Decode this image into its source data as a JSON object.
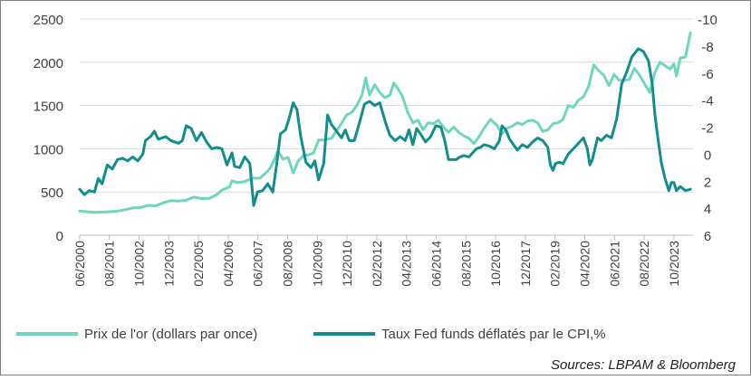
{
  "chart_data": {
    "type": "line",
    "title": "",
    "y_left": {
      "min": 0,
      "max": 2500,
      "ticks": [
        0,
        500,
        1000,
        1500,
        2000,
        2500
      ]
    },
    "y_right": {
      "min": 6,
      "max": -10,
      "inverted": true,
      "ticks": [
        6,
        4,
        2,
        0,
        -2,
        -4,
        -6,
        -8,
        -10
      ]
    },
    "x_ticks": [
      "06/2000",
      "08/2001",
      "10/2002",
      "12/2003",
      "02/2005",
      "04/2006",
      "06/2007",
      "08/2008",
      "10/2009",
      "12/2010",
      "02/2012",
      "04/2013",
      "06/2014",
      "08/2015",
      "10/2016",
      "12/2017",
      "02/2019",
      "04/2020",
      "06/2021",
      "08/2022",
      "10/2023"
    ],
    "grid": "horizontal",
    "legend_position": "bottom",
    "colors": {
      "gold": "#6fd6bd",
      "fed": "#138c8c",
      "grid": "#d9d9d9"
    },
    "series": [
      {
        "name": "Prix de l'or (dollars par once)",
        "axis": "left",
        "points": [
          [
            2000.42,
            280
          ],
          [
            2000.7,
            272
          ],
          [
            2001.0,
            265
          ],
          [
            2001.3,
            268
          ],
          [
            2001.6,
            272
          ],
          [
            2001.9,
            278
          ],
          [
            2002.2,
            295
          ],
          [
            2002.5,
            315
          ],
          [
            2002.8,
            320
          ],
          [
            2003.1,
            345
          ],
          [
            2003.4,
            340
          ],
          [
            2003.7,
            375
          ],
          [
            2004.0,
            400
          ],
          [
            2004.3,
            395
          ],
          [
            2004.6,
            405
          ],
          [
            2004.9,
            440
          ],
          [
            2005.2,
            425
          ],
          [
            2005.5,
            425
          ],
          [
            2005.8,
            470
          ],
          [
            2006.0,
            520
          ],
          [
            2006.3,
            560
          ],
          [
            2006.4,
            630
          ],
          [
            2006.6,
            610
          ],
          [
            2006.9,
            620
          ],
          [
            2007.2,
            660
          ],
          [
            2007.5,
            660
          ],
          [
            2007.8,
            740
          ],
          [
            2007.95,
            800
          ],
          [
            2008.1,
            900
          ],
          [
            2008.2,
            980
          ],
          [
            2008.4,
            880
          ],
          [
            2008.6,
            900
          ],
          [
            2008.8,
            720
          ],
          [
            2009.0,
            860
          ],
          [
            2009.2,
            920
          ],
          [
            2009.4,
            930
          ],
          [
            2009.6,
            950
          ],
          [
            2009.8,
            1100
          ],
          [
            2010.0,
            1100
          ],
          [
            2010.3,
            1120
          ],
          [
            2010.6,
            1250
          ],
          [
            2010.9,
            1390
          ],
          [
            2011.1,
            1420
          ],
          [
            2011.3,
            1500
          ],
          [
            2011.5,
            1620
          ],
          [
            2011.65,
            1820
          ],
          [
            2011.8,
            1620
          ],
          [
            2012.0,
            1740
          ],
          [
            2012.2,
            1650
          ],
          [
            2012.4,
            1590
          ],
          [
            2012.6,
            1620
          ],
          [
            2012.75,
            1760
          ],
          [
            2012.9,
            1700
          ],
          [
            2013.1,
            1600
          ],
          [
            2013.3,
            1420
          ],
          [
            2013.5,
            1300
          ],
          [
            2013.7,
            1330
          ],
          [
            2013.9,
            1220
          ],
          [
            2014.1,
            1300
          ],
          [
            2014.3,
            1290
          ],
          [
            2014.5,
            1330
          ],
          [
            2014.7,
            1250
          ],
          [
            2014.9,
            1190
          ],
          [
            2015.1,
            1250
          ],
          [
            2015.3,
            1190
          ],
          [
            2015.5,
            1150
          ],
          [
            2015.7,
            1120
          ],
          [
            2015.9,
            1060
          ],
          [
            2016.1,
            1140
          ],
          [
            2016.3,
            1240
          ],
          [
            2016.55,
            1340
          ],
          [
            2016.8,
            1270
          ],
          [
            2017.0,
            1170
          ],
          [
            2017.2,
            1240
          ],
          [
            2017.4,
            1260
          ],
          [
            2017.6,
            1300
          ],
          [
            2017.8,
            1280
          ],
          [
            2018.0,
            1320
          ],
          [
            2018.2,
            1330
          ],
          [
            2018.4,
            1300
          ],
          [
            2018.6,
            1200
          ],
          [
            2018.8,
            1220
          ],
          [
            2019.0,
            1290
          ],
          [
            2019.2,
            1300
          ],
          [
            2019.4,
            1340
          ],
          [
            2019.6,
            1500
          ],
          [
            2019.8,
            1480
          ],
          [
            2020.0,
            1560
          ],
          [
            2020.2,
            1600
          ],
          [
            2020.4,
            1720
          ],
          [
            2020.6,
            1970
          ],
          [
            2020.8,
            1900
          ],
          [
            2021.0,
            1850
          ],
          [
            2021.2,
            1730
          ],
          [
            2021.4,
            1860
          ],
          [
            2021.6,
            1790
          ],
          [
            2021.8,
            1790
          ],
          [
            2022.0,
            1800
          ],
          [
            2022.2,
            1930
          ],
          [
            2022.4,
            1850
          ],
          [
            2022.6,
            1750
          ],
          [
            2022.8,
            1650
          ],
          [
            2023.0,
            1880
          ],
          [
            2023.2,
            2000
          ],
          [
            2023.4,
            1960
          ],
          [
            2023.6,
            1920
          ],
          [
            2023.75,
            1980
          ],
          [
            2023.85,
            1840
          ],
          [
            2024.0,
            2050
          ],
          [
            2024.2,
            2060
          ],
          [
            2024.4,
            2340
          ]
        ]
      },
      {
        "name": "Taux Fed funds déflatés par le CPI,%",
        "axis": "right",
        "points": [
          [
            2000.42,
            2.6
          ],
          [
            2000.6,
            3.0
          ],
          [
            2000.8,
            2.7
          ],
          [
            2001.0,
            2.8
          ],
          [
            2001.15,
            1.8
          ],
          [
            2001.3,
            2.2
          ],
          [
            2001.5,
            0.8
          ],
          [
            2001.7,
            1.1
          ],
          [
            2001.9,
            0.4
          ],
          [
            2002.1,
            0.3
          ],
          [
            2002.3,
            0.5
          ],
          [
            2002.5,
            0.2
          ],
          [
            2002.7,
            0.5
          ],
          [
            2002.9,
            0.0
          ],
          [
            2003.0,
            -1.0
          ],
          [
            2003.2,
            -1.3
          ],
          [
            2003.35,
            -1.7
          ],
          [
            2003.5,
            -1.1
          ],
          [
            2003.8,
            -1.3
          ],
          [
            2004.0,
            -1.0
          ],
          [
            2004.3,
            -0.8
          ],
          [
            2004.45,
            -1.0
          ],
          [
            2004.6,
            -2.1
          ],
          [
            2004.8,
            -1.9
          ],
          [
            2005.0,
            -1.0
          ],
          [
            2005.2,
            -1.6
          ],
          [
            2005.4,
            -0.9
          ],
          [
            2005.6,
            -0.4
          ],
          [
            2005.8,
            -0.5
          ],
          [
            2006.0,
            -0.4
          ],
          [
            2006.2,
            0.8
          ],
          [
            2006.4,
            -0.1
          ],
          [
            2006.5,
            0.9
          ],
          [
            2006.7,
            1.0
          ],
          [
            2006.9,
            0.2
          ],
          [
            2007.1,
            0.7
          ],
          [
            2007.25,
            3.8
          ],
          [
            2007.4,
            2.8
          ],
          [
            2007.6,
            2.7
          ],
          [
            2007.8,
            2.2
          ],
          [
            2008.0,
            2.8
          ],
          [
            2008.15,
            0.8
          ],
          [
            2008.3,
            -1.5
          ],
          [
            2008.5,
            -1.8
          ],
          [
            2008.65,
            -2.7
          ],
          [
            2008.8,
            -3.8
          ],
          [
            2008.95,
            -3.3
          ],
          [
            2009.1,
            -1.3
          ],
          [
            2009.3,
            0.6
          ],
          [
            2009.5,
            1.0
          ],
          [
            2009.65,
            0.5
          ],
          [
            2009.8,
            1.9
          ],
          [
            2010.0,
            0.7
          ],
          [
            2010.15,
            -2.9
          ],
          [
            2010.3,
            -2.2
          ],
          [
            2010.5,
            -1.7
          ],
          [
            2010.7,
            -1.2
          ],
          [
            2010.85,
            -1.8
          ],
          [
            2011.0,
            -1.0
          ],
          [
            2011.2,
            -1.0
          ],
          [
            2011.4,
            -2.3
          ],
          [
            2011.6,
            -3.7
          ],
          [
            2011.8,
            -3.9
          ],
          [
            2012.0,
            -3.6
          ],
          [
            2012.2,
            -3.8
          ],
          [
            2012.45,
            -2.2
          ],
          [
            2012.6,
            -1.4
          ],
          [
            2012.8,
            -1.0
          ],
          [
            2013.0,
            -1.3
          ],
          [
            2013.2,
            -1.0
          ],
          [
            2013.35,
            -1.8
          ],
          [
            2013.5,
            -0.7
          ],
          [
            2013.65,
            -1.9
          ],
          [
            2013.8,
            -1.5
          ],
          [
            2014.0,
            -0.9
          ],
          [
            2014.2,
            -1.3
          ],
          [
            2014.4,
            -2.1
          ],
          [
            2014.6,
            -2.0
          ],
          [
            2014.75,
            -1.0
          ],
          [
            2014.9,
            0.4
          ],
          [
            2015.0,
            0.4
          ],
          [
            2015.2,
            0.4
          ],
          [
            2015.35,
            0.2
          ],
          [
            2015.5,
            0.1
          ],
          [
            2015.7,
            0.2
          ],
          [
            2015.85,
            -0.1
          ],
          [
            2016.0,
            -0.4
          ],
          [
            2016.15,
            -0.5
          ],
          [
            2016.3,
            -0.7
          ],
          [
            2016.5,
            -0.6
          ],
          [
            2016.7,
            -0.4
          ],
          [
            2016.9,
            -1.0
          ],
          [
            2017.0,
            -2.1
          ],
          [
            2017.15,
            -1.8
          ],
          [
            2017.3,
            -1.1
          ],
          [
            2017.45,
            -0.7
          ],
          [
            2017.6,
            -0.3
          ],
          [
            2017.8,
            -0.7
          ],
          [
            2018.0,
            -0.5
          ],
          [
            2018.2,
            -0.9
          ],
          [
            2018.4,
            -1.2
          ],
          [
            2018.6,
            -1.0
          ],
          [
            2018.8,
            -0.5
          ],
          [
            2018.9,
            0.8
          ],
          [
            2019.0,
            1.2
          ],
          [
            2019.1,
            0.7
          ],
          [
            2019.25,
            0.6
          ],
          [
            2019.4,
            0.7
          ],
          [
            2019.6,
            0.0
          ],
          [
            2019.8,
            -0.4
          ],
          [
            2020.0,
            -0.8
          ],
          [
            2020.2,
            -1.2
          ],
          [
            2020.35,
            -0.4
          ],
          [
            2020.45,
            0.8
          ],
          [
            2020.55,
            0.4
          ],
          [
            2020.75,
            -1.2
          ],
          [
            2020.9,
            -1.0
          ],
          [
            2021.1,
            -1.4
          ],
          [
            2021.3,
            -1.2
          ],
          [
            2021.5,
            -2.6
          ],
          [
            2021.7,
            -5.2
          ],
          [
            2021.9,
            -6.1
          ],
          [
            2022.1,
            -7.2
          ],
          [
            2022.35,
            -7.8
          ],
          [
            2022.55,
            -7.6
          ],
          [
            2022.75,
            -6.9
          ],
          [
            2022.9,
            -5.2
          ],
          [
            2023.0,
            -3.0
          ],
          [
            2023.1,
            -1.5
          ],
          [
            2023.25,
            0.6
          ],
          [
            2023.4,
            1.8
          ],
          [
            2023.55,
            2.7
          ],
          [
            2023.65,
            2.1
          ],
          [
            2023.75,
            2.1
          ],
          [
            2023.85,
            2.7
          ],
          [
            2024.0,
            2.4
          ],
          [
            2024.2,
            2.7
          ],
          [
            2024.4,
            2.6
          ]
        ]
      }
    ]
  },
  "source": "Sources: LBPAM & Bloomberg"
}
